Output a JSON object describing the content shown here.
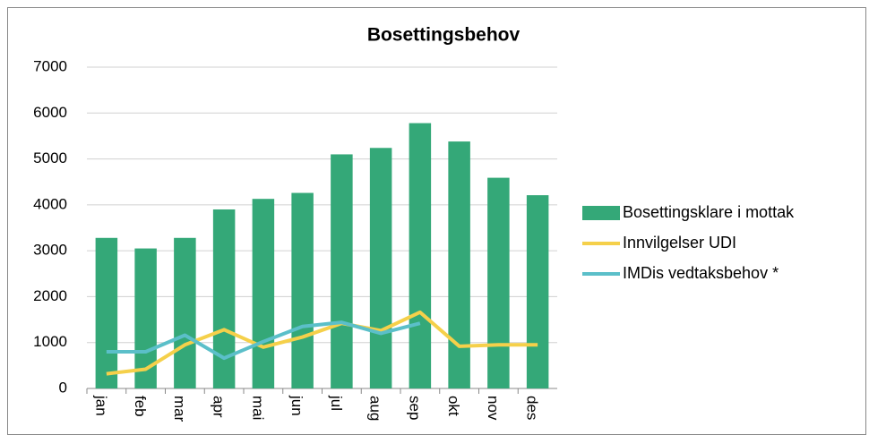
{
  "chart_data": {
    "type": "bar",
    "title": "Bosettingsbehov",
    "categories": [
      "jan",
      "feb",
      "mar",
      "apr",
      "mai",
      "jun",
      "jul",
      "aug",
      "sep",
      "okt",
      "nov",
      "des"
    ],
    "series": [
      {
        "name": "Bosettingsklare i mottak",
        "kind": "bar",
        "color": "#34a878",
        "values": [
          3280,
          3050,
          3280,
          3900,
          4130,
          4260,
          5100,
          5240,
          5780,
          5380,
          4590,
          4210
        ]
      },
      {
        "name": "Innvilgelser UDI",
        "kind": "line",
        "color": "#f5d04a",
        "values": [
          320,
          420,
          950,
          1280,
          900,
          1120,
          1420,
          1260,
          1660,
          920,
          950,
          950
        ]
      },
      {
        "name": "IMDis vedtaksbehov *",
        "kind": "line",
        "color": "#5bbfc9",
        "values": [
          800,
          800,
          1160,
          660,
          1020,
          1350,
          1440,
          1200,
          1420,
          null,
          null,
          null
        ]
      }
    ],
    "ylim": [
      0,
      7000
    ],
    "yticks": [
      0,
      1000,
      2000,
      3000,
      4000,
      5000,
      6000,
      7000
    ],
    "grid": true,
    "legend": "right"
  }
}
